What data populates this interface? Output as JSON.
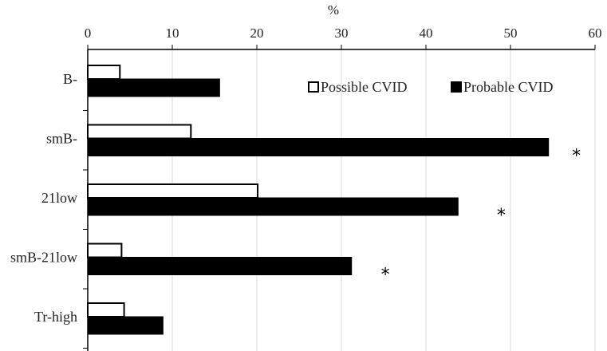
{
  "chart_data": {
    "type": "bar",
    "orientation": "horizontal",
    "title": "",
    "xlabel": "%",
    "ylabel": "",
    "xlim": [
      0,
      60
    ],
    "x_ticks": [
      "0",
      "10",
      "20",
      "30",
      "40",
      "50",
      "60"
    ],
    "x_axis_position": "top",
    "grid": "vertical",
    "categories": [
      "B-",
      "smB-",
      "21low",
      "smB-21low",
      "Tr-high"
    ],
    "series": [
      {
        "name": "Possible CVID",
        "values": [
          3.8,
          12.2,
          20.1,
          4.0,
          4.3
        ],
        "fill": "#ffffff",
        "stroke": "#000000"
      },
      {
        "name": "Probable CVID",
        "values": [
          15.6,
          54.5,
          43.8,
          31.2,
          8.9
        ],
        "fill": "#000000",
        "stroke": "#000000"
      }
    ],
    "annotations": [
      {
        "category": "smB-",
        "text": "*",
        "near_value": 57.8
      },
      {
        "category": "21low",
        "text": "*",
        "near_value": 48.9
      },
      {
        "category": "smB-21low",
        "text": "*",
        "near_value": 35.2
      }
    ],
    "legend": {
      "placement": "top-right"
    }
  }
}
